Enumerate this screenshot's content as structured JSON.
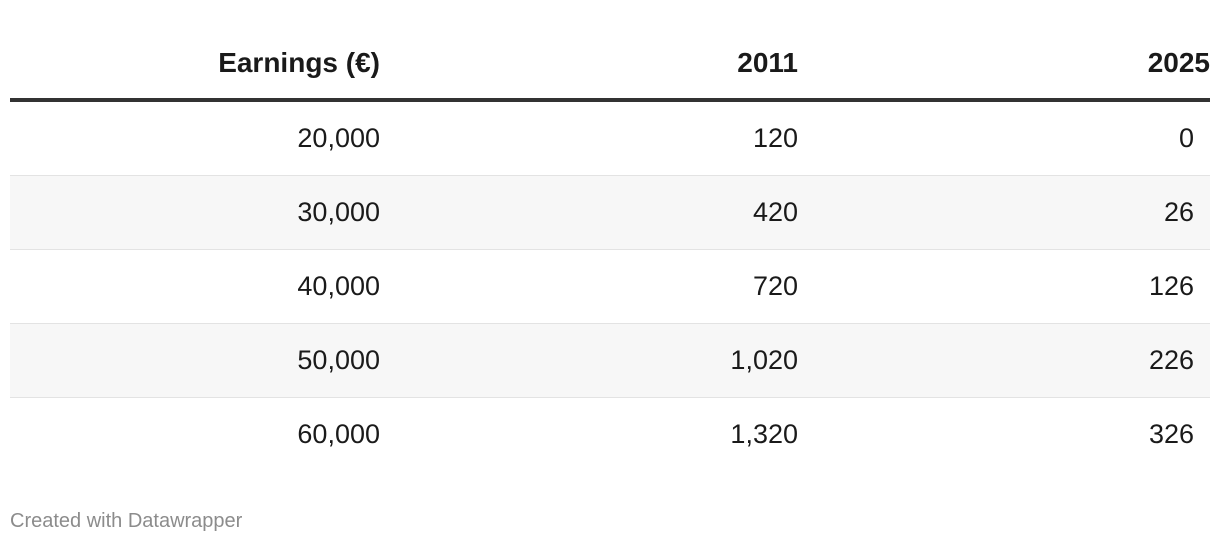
{
  "chart_data": {
    "type": "table",
    "columns": [
      "Earnings (€)",
      "2011",
      "2025"
    ],
    "rows": [
      [
        "20,000",
        "120",
        "0"
      ],
      [
        "30,000",
        "420",
        "26"
      ],
      [
        "40,000",
        "720",
        "126"
      ],
      [
        "50,000",
        "1,020",
        "226"
      ],
      [
        "60,000",
        "1,320",
        "326"
      ]
    ],
    "stripe_color": "#f7f7f7",
    "header_rule_color": "#333333"
  },
  "footer": {
    "credit": "Created with Datawrapper"
  }
}
